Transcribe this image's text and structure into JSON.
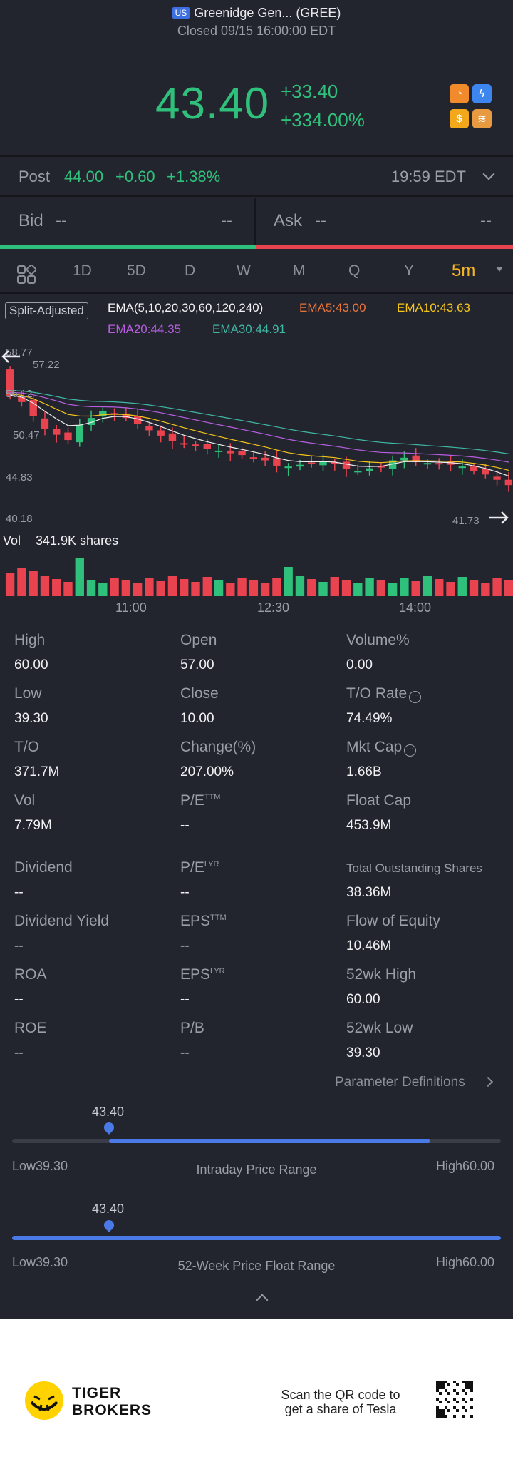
{
  "header": {
    "market_badge": "US",
    "title": "Greenidge Gen... (GREE)",
    "status": "Closed 09/15 16:00:00 EDT"
  },
  "quote": {
    "price": "43.40",
    "change": "+33.40",
    "change_pct": "+334.00%"
  },
  "post_market": {
    "label": "Post",
    "price": "44.00",
    "change": "+0.60",
    "change_pct": "+1.38%",
    "time": "19:59 EDT"
  },
  "bid_ask": {
    "bid_label": "Bid",
    "bid_price": "--",
    "bid_size": "--",
    "ask_label": "Ask",
    "ask_price": "--",
    "ask_size": "--"
  },
  "tabs": [
    "1D",
    "5D",
    "D",
    "W",
    "M",
    "Q",
    "Y",
    "5m"
  ],
  "active_tab": "5m",
  "chart": {
    "split_label": "Split-Adjusted",
    "ema_params": "EMA(5,10,20,30,60,120,240)",
    "ema5": "EMA5:43.00",
    "ema10": "EMA10:43.63",
    "ema20": "EMA20:44.35",
    "ema30": "EMA30:44.91",
    "y_labels": [
      "58.77",
      "57.22",
      "56.12",
      "50.47",
      "44.83",
      "40.18",
      "41.73"
    ],
    "vol_label": "Vol",
    "vol_value": "341.9K shares",
    "x_labels": [
      "11:00",
      "12:30",
      "14:00"
    ],
    "colors": {
      "up": "#2fc17b",
      "down": "#e8434f",
      "ema5": "#f0f0f0",
      "ema10": "#f5c518",
      "ema20": "#b75ee0",
      "ema30": "#3fb7a5"
    }
  },
  "chart_data": {
    "type": "candlestick",
    "interval": "5m",
    "y_range": [
      40.18,
      58.77
    ],
    "closes_approx": [
      53.5,
      52.8,
      51.2,
      49.8,
      49.1,
      48.5,
      50.2,
      51.0,
      51.8,
      51.5,
      51.0,
      50.3,
      49.6,
      49.0,
      48.4,
      48.0,
      47.8,
      47.5,
      47.3,
      47.0,
      46.8,
      46.5,
      46.2,
      45.6,
      45.5,
      45.7,
      45.9,
      46.0,
      45.8,
      45.2,
      45.0,
      45.3,
      45.5,
      46.2,
      46.5,
      46.0,
      45.9,
      45.8,
      45.7,
      45.5,
      45.0,
      44.6,
      44.0,
      43.4
    ],
    "volume_label": "341.9K shares"
  },
  "stats": [
    {
      "label": "High",
      "value": "60.00"
    },
    {
      "label": "Open",
      "value": "57.00"
    },
    {
      "label": "Volume%",
      "value": "0.00"
    },
    {
      "label": "Low",
      "value": "39.30"
    },
    {
      "label": "Close",
      "value": "10.00"
    },
    {
      "label": "T/O Rate",
      "value": "74.49%"
    },
    {
      "label": "T/O",
      "value": "371.7M"
    },
    {
      "label": "Change(%)",
      "value": "207.00%"
    },
    {
      "label": "Mkt Cap",
      "value": "1.66B"
    },
    {
      "label": "Vol",
      "value": "7.79M"
    },
    {
      "label": "P/E",
      "sup": "TTM",
      "value": "--"
    },
    {
      "label": "Float Cap",
      "value": "453.9M"
    },
    {
      "label": "Dividend",
      "value": "--"
    },
    {
      "label": "P/E",
      "sup": "LYR",
      "value": "--"
    },
    {
      "label": "Total Outstanding Shares",
      "value": "38.36M"
    },
    {
      "label": "Dividend Yield",
      "value": "--"
    },
    {
      "label": "EPS",
      "sup": "TTM",
      "value": "--"
    },
    {
      "label": "Flow of Equity",
      "value": "10.46M"
    },
    {
      "label": "ROA",
      "value": "--"
    },
    {
      "label": "EPS",
      "sup": "LYR",
      "value": "--"
    },
    {
      "label": "52wk High",
      "value": "60.00"
    },
    {
      "label": "ROE",
      "value": "--"
    },
    {
      "label": "P/B",
      "value": "--"
    },
    {
      "label": "52wk Low",
      "value": "39.30"
    }
  ],
  "param_def": "Parameter Definitions",
  "intraday_range": {
    "current": "43.40",
    "low": "Low39.30",
    "high": "High60.00",
    "title": "Intraday Price Range",
    "current_fraction": 0.198
  },
  "week52_range": {
    "current": "43.40",
    "low": "Low39.30",
    "high": "High60.00",
    "title": "52-Week Price Float Range",
    "current_fraction": 0.198
  },
  "footer": {
    "brand_line1": "TIGER",
    "brand_line2": "BROKERS",
    "qr_line1": "Scan the QR code to",
    "qr_line2": "get a share of Tesla"
  }
}
